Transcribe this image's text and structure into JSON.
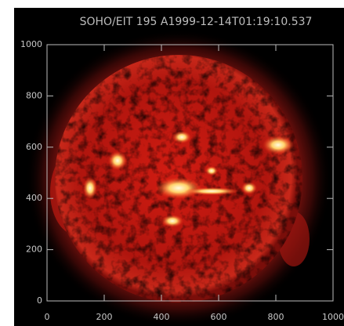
{
  "chart_data": {
    "type": "image",
    "title": "SOHO/EIT 195 A1999-12-14T01:19:10.537",
    "xlim": [
      0,
      1000
    ],
    "ylim": [
      0,
      1000
    ],
    "xticks": [
      0,
      200,
      400,
      600,
      800,
      1000
    ],
    "yticks": [
      0,
      200,
      400,
      600,
      800,
      1000
    ]
  }
}
